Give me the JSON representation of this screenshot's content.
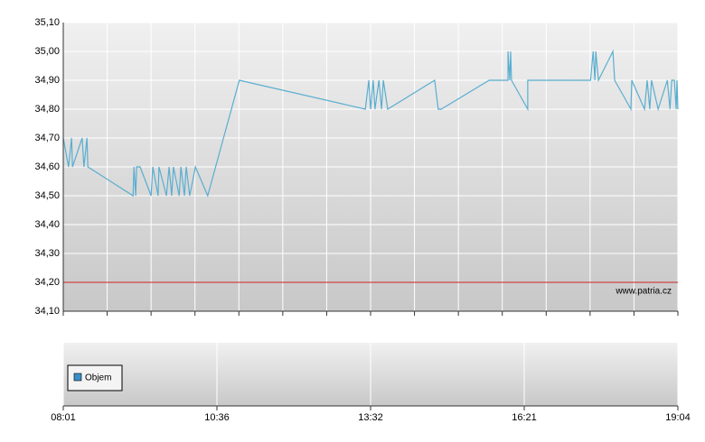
{
  "chart_data": {
    "type": "line",
    "x": [
      0,
      1.2,
      1.9,
      2.1,
      4.3,
      4.7,
      5.4,
      5.6,
      15.9,
      16.1,
      16.5,
      16.7,
      17.5,
      20.0,
      20.4,
      21.6,
      21.8,
      23.5,
      24.1,
      24.7,
      25.1,
      26.4,
      26.8,
      27.6,
      28.0,
      28.8,
      30.1,
      32.9,
      40.1,
      68.8,
      69.6,
      70.0,
      70.6,
      71.0,
      71.9,
      72.5,
      72.9,
      73.9,
      84.6,
      85.4,
      86.1,
      97.0,
      101.3,
      101.3,
      101.7,
      101.9,
      102.1,
      105.8,
      105.8,
      120.1,
      120.7,
      121.1,
      121.3,
      121.9,
      125.2,
      125.6,
      129.3,
      129.5,
      132.4,
      133.0,
      133.6,
      134.0,
      135.5,
      137.6,
      138.2,
      138.6,
      139.2,
      139.6,
      139.8,
      140
    ],
    "values": [
      34.7,
      34.6,
      34.7,
      34.6,
      34.7,
      34.6,
      34.7,
      34.6,
      34.5,
      34.6,
      34.5,
      34.6,
      34.6,
      34.5,
      34.6,
      34.5,
      34.6,
      34.5,
      34.6,
      34.5,
      34.6,
      34.5,
      34.6,
      34.5,
      34.6,
      34.5,
      34.6,
      34.5,
      34.9,
      34.8,
      34.9,
      34.8,
      34.9,
      34.8,
      34.9,
      34.8,
      34.9,
      34.8,
      34.9,
      34.8,
      34.8,
      34.9,
      34.9,
      35.0,
      34.9,
      35.0,
      34.9,
      34.8,
      34.9,
      34.9,
      35.0,
      34.9,
      35.0,
      34.9,
      35.0,
      34.9,
      34.8,
      34.9,
      34.8,
      34.9,
      34.8,
      34.9,
      34.8,
      34.9,
      34.8,
      34.9,
      34.9,
      34.8,
      34.9,
      34.8
    ],
    "color": "#5aaed0",
    "xlim": [
      0,
      140
    ],
    "xticks": [
      {
        "value": 0,
        "label": "08:01"
      },
      {
        "value": 35,
        "label": "10:36"
      },
      {
        "value": 70,
        "label": "13:32"
      },
      {
        "value": 105,
        "label": "16:21"
      },
      {
        "value": 140,
        "label": "19:04"
      }
    ],
    "xminorticks": [
      0,
      10,
      20,
      30,
      40,
      50,
      60,
      70,
      80,
      90,
      100,
      110,
      120,
      130,
      140
    ],
    "ylim": [
      34.1,
      35.1
    ],
    "yticks": [
      {
        "value": 34.1,
        "label": "34,10"
      },
      {
        "value": 34.2,
        "label": "34,20"
      },
      {
        "value": 34.3,
        "label": "34,30"
      },
      {
        "value": 34.4,
        "label": "34,40"
      },
      {
        "value": 34.5,
        "label": "34,50"
      },
      {
        "value": 34.6,
        "label": "34,60"
      },
      {
        "value": 34.7,
        "label": "34,70"
      },
      {
        "value": 34.8,
        "label": "34,80"
      },
      {
        "value": 34.9,
        "label": "34,90"
      },
      {
        "value": 35.0,
        "label": "35,00"
      },
      {
        "value": 35.1,
        "label": "35,10"
      }
    ],
    "grid": true,
    "reference_line": {
      "value": 34.2,
      "color": "#cc2222"
    },
    "watermark": "www.patria.cz",
    "volume": {
      "name": "Objem",
      "color": "#3a8fc8"
    }
  }
}
